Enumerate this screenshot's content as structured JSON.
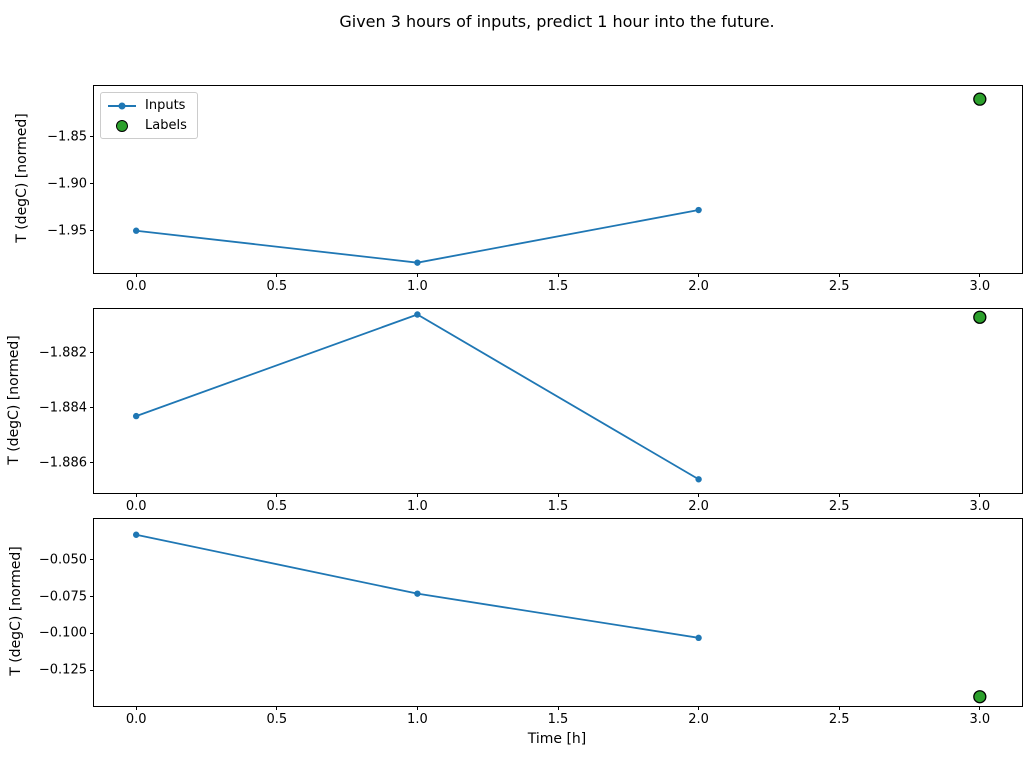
{
  "figure": {
    "title": "Given 3 hours of inputs, predict 1 hour into the future.",
    "xlabel": "Time [h]"
  },
  "legend": {
    "position": "upper-left",
    "items": [
      {
        "label": "Inputs",
        "marker": "line-with-dot",
        "color": "#1f77b4"
      },
      {
        "label": "Labels",
        "marker": "circle",
        "fill": "#2ca02c",
        "edge": "#000000"
      }
    ]
  },
  "colors": {
    "inputs_line": "#1f77b4",
    "labels_fill": "#2ca02c",
    "labels_edge": "#000000",
    "axes_edge": "#000000",
    "background": "#ffffff"
  },
  "chart_data": [
    {
      "type": "line",
      "ylabel": "T (degC) [normed]",
      "x": [
        0.0,
        1.0,
        2.0
      ],
      "series": [
        {
          "name": "Inputs",
          "values": [
            -1.95,
            -1.984,
            -1.928
          ]
        }
      ],
      "label_point": {
        "name": "Labels",
        "x": 3.0,
        "y": -1.81
      },
      "xlim": [
        -0.15,
        3.15
      ],
      "ylim": [
        -1.995,
        -1.796
      ],
      "xticks": [
        {
          "v": 0.0,
          "label": "0.0"
        },
        {
          "v": 0.5,
          "label": "0.5"
        },
        {
          "v": 1.0,
          "label": "1.0"
        },
        {
          "v": 1.5,
          "label": "1.5"
        },
        {
          "v": 2.0,
          "label": "2.0"
        },
        {
          "v": 2.5,
          "label": "2.5"
        },
        {
          "v": 3.0,
          "label": "3.0"
        }
      ],
      "yticks": [
        {
          "v": -1.85,
          "label": "−1.85"
        },
        {
          "v": -1.9,
          "label": "−1.90"
        },
        {
          "v": -1.95,
          "label": "−1.95"
        }
      ],
      "grid": false
    },
    {
      "type": "line",
      "ylabel": "T (degC) [normed]",
      "x": [
        0.0,
        1.0,
        2.0
      ],
      "series": [
        {
          "name": "Inputs",
          "values": [
            -1.8843,
            -1.8806,
            -1.8866
          ]
        }
      ],
      "label_point": {
        "name": "Labels",
        "x": 3.0,
        "y": -1.8807
      },
      "xlim": [
        -0.15,
        3.15
      ],
      "ylim": [
        -1.8871,
        -1.8804
      ],
      "xticks": [
        {
          "v": 0.0,
          "label": "0.0"
        },
        {
          "v": 0.5,
          "label": "0.5"
        },
        {
          "v": 1.0,
          "label": "1.0"
        },
        {
          "v": 1.5,
          "label": "1.5"
        },
        {
          "v": 2.0,
          "label": "2.0"
        },
        {
          "v": 2.5,
          "label": "2.5"
        },
        {
          "v": 3.0,
          "label": "3.0"
        }
      ],
      "yticks": [
        {
          "v": -1.882,
          "label": "−1.882"
        },
        {
          "v": -1.884,
          "label": "−1.884"
        },
        {
          "v": -1.886,
          "label": "−1.886"
        }
      ],
      "grid": false
    },
    {
      "type": "line",
      "ylabel": "T (degC) [normed]",
      "x": [
        0.0,
        1.0,
        2.0
      ],
      "series": [
        {
          "name": "Inputs",
          "values": [
            -0.033,
            -0.073,
            -0.103
          ]
        }
      ],
      "label_point": {
        "name": "Labels",
        "x": 3.0,
        "y": -0.143
      },
      "xlim": [
        -0.15,
        3.15
      ],
      "ylim": [
        -0.1493,
        -0.0223
      ],
      "xticks": [
        {
          "v": 0.0,
          "label": "0.0"
        },
        {
          "v": 0.5,
          "label": "0.5"
        },
        {
          "v": 1.0,
          "label": "1.0"
        },
        {
          "v": 1.5,
          "label": "1.5"
        },
        {
          "v": 2.0,
          "label": "2.0"
        },
        {
          "v": 2.5,
          "label": "2.5"
        },
        {
          "v": 3.0,
          "label": "3.0"
        }
      ],
      "yticks": [
        {
          "v": -0.05,
          "label": "−0.050"
        },
        {
          "v": -0.075,
          "label": "−0.075"
        },
        {
          "v": -0.1,
          "label": "−0.100"
        },
        {
          "v": -0.125,
          "label": "−0.125"
        }
      ],
      "grid": false
    }
  ]
}
